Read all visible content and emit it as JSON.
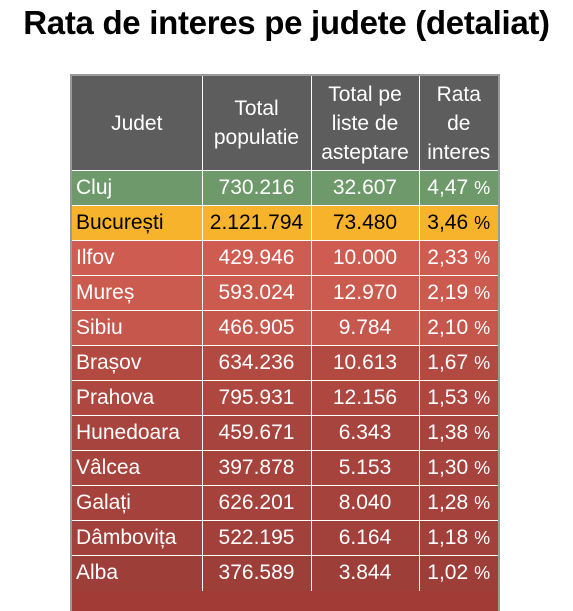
{
  "title": "Rata de interes pe judete (detaliat)",
  "chart_data": {
    "type": "table",
    "title": "Rata de interes pe judete (detaliat)",
    "columns": [
      "Judet",
      "Total populatie",
      "Total pe liste de asteptare",
      "Rata de interes"
    ],
    "header_lines": [
      [
        "Judet"
      ],
      [
        "Total",
        "populatie"
      ],
      [
        "Total pe",
        "liste de",
        "asteptare"
      ],
      [
        "Rata",
        "de",
        "interes"
      ]
    ],
    "rows": [
      {
        "judet": "Cluj",
        "populatie": "730.216",
        "lista": "32.607",
        "rata": "4,47",
        "color": "#6e9a6b"
      },
      {
        "judet": "București",
        "populatie": "2.121.794",
        "lista": "73.480",
        "rata": "3,46",
        "color": "#f7b32c"
      },
      {
        "judet": "Ilfov",
        "populatie": "429.946",
        "lista": "10.000",
        "rata": "2,33",
        "color": "#cf5c51"
      },
      {
        "judet": "Mureș",
        "populatie": "593.024",
        "lista": "12.970",
        "rata": "2,19",
        "color": "#cb5a4f"
      },
      {
        "judet": "Sibiu",
        "populatie": "466.905",
        "lista": "9.784",
        "rata": "2,10",
        "color": "#c6574d"
      },
      {
        "judet": "Brașov",
        "populatie": "634.236",
        "lista": "10.613",
        "rata": "1,67",
        "color": "#b24a42"
      },
      {
        "judet": "Prahova",
        "populatie": "795.931",
        "lista": "12.156",
        "rata": "1,53",
        "color": "#ad4740"
      },
      {
        "judet": "Hunedoara",
        "populatie": "459.671",
        "lista": "6.343",
        "rata": "1,38",
        "color": "#a8443e"
      },
      {
        "judet": "Vâlcea",
        "populatie": "397.878",
        "lista": "5.153",
        "rata": "1,30",
        "color": "#a6433d"
      },
      {
        "judet": "Galați",
        "populatie": "626.201",
        "lista": "8.040",
        "rata": "1,28",
        "color": "#a5423c"
      },
      {
        "judet": "Dâmbovița",
        "populatie": "522.195",
        "lista": "6.164",
        "rata": "1,18",
        "color": "#a2403b"
      },
      {
        "judet": "Alba",
        "populatie": "376.589",
        "lista": "3.844",
        "rata": "1,02",
        "color": "#9e3e39"
      }
    ],
    "rate_unit": "%",
    "highlight_rows": [
      1
    ]
  }
}
